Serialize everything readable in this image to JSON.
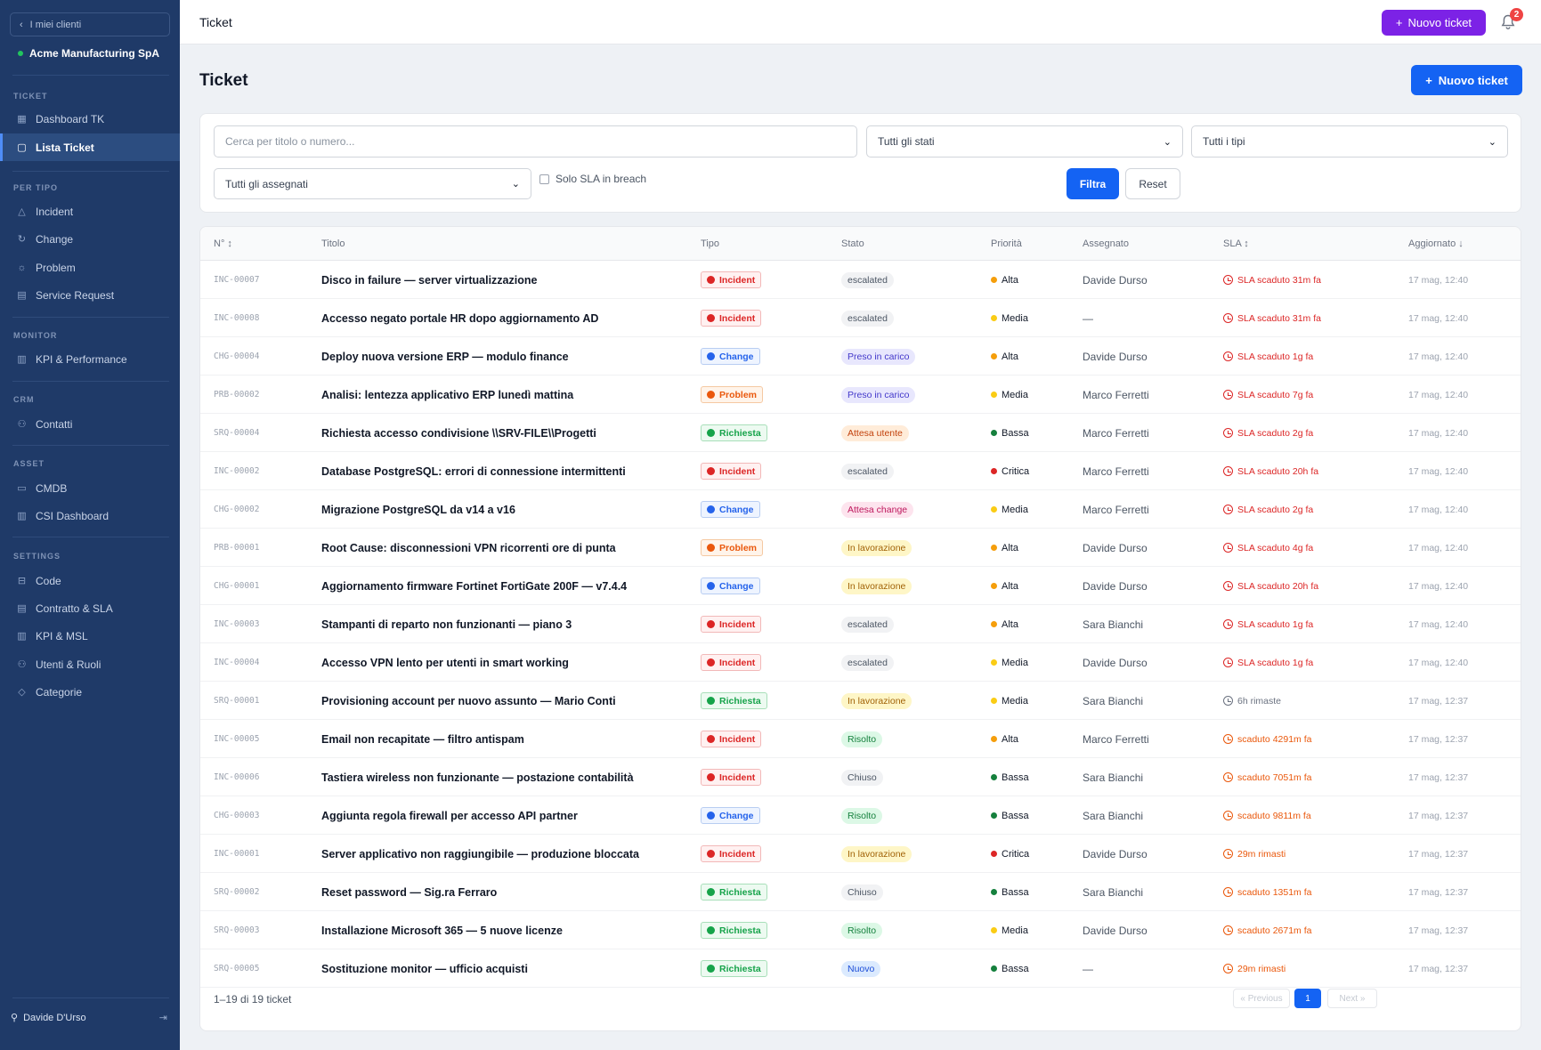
{
  "sidebar": {
    "back_label": "I miei clienti",
    "client_name": "Acme Manufacturing SpA",
    "sections": {
      "ticket": "TICKET",
      "per_tipo": "PER TIPO",
      "monitor": "MONITOR",
      "crm": "CRM",
      "asset": "ASSET",
      "settings": "SETTINGS"
    },
    "items": [
      {
        "label": "Dashboard TK",
        "icon": "grid-icon"
      },
      {
        "label": "Lista Ticket",
        "icon": "clipboard-icon"
      },
      {
        "label": "Incident",
        "icon": "warning-icon"
      },
      {
        "label": "Change",
        "icon": "refresh-icon"
      },
      {
        "label": "Problem",
        "icon": "bulb-icon"
      },
      {
        "label": "Service Request",
        "icon": "clipboard-icon"
      },
      {
        "label": "KPI & Performance",
        "icon": "bar-chart-icon"
      },
      {
        "label": "Contatti",
        "icon": "users-icon"
      },
      {
        "label": "CMDB",
        "icon": "database-icon"
      },
      {
        "label": "CSI Dashboard",
        "icon": "bar-chart-icon"
      },
      {
        "label": "Code",
        "icon": "inbox-icon"
      },
      {
        "label": "Contratto & SLA",
        "icon": "document-icon"
      },
      {
        "label": "KPI & MSL",
        "icon": "bar-chart-icon"
      },
      {
        "label": "Utenti & Ruoli",
        "icon": "users-icon"
      },
      {
        "label": "Categorie",
        "icon": "tag-icon"
      }
    ],
    "user_name": "Davide D'Urso"
  },
  "topbar": {
    "title": "Ticket",
    "new_ticket_label": "Nuovo ticket",
    "notification_count": "2"
  },
  "page": {
    "title": "Ticket",
    "new_ticket_label": "Nuovo ticket"
  },
  "filters": {
    "search_placeholder": "Cerca per titolo o numero...",
    "stato_value": "Tutti gli stati",
    "tipo_value": "Tutti i tipi",
    "assegnato_value": "Tutti gli assegnati",
    "sla_breach_label": "Solo SLA in breach",
    "filter_button": "Filtra",
    "reset_button": "Reset"
  },
  "table": {
    "headers": {
      "num": "N° ↕",
      "titolo": "Titolo",
      "tipo": "Tipo",
      "stato": "Stato",
      "priorita": "Priorità",
      "assegnato": "Assegnato",
      "sla": "SLA ↕",
      "aggiornato": "Aggiornato ↓"
    },
    "rows": [
      {
        "num": "INC-00007",
        "titolo": "Disco in failure — server virtualizzazione",
        "tipo": "Incident",
        "tipo_kind": "incident",
        "stato": "escalated",
        "stato_kind": "escalated",
        "priorita": "Alta",
        "prio_color": "#f59e0b",
        "assegnato": "Davide Durso",
        "sla": "SLA scaduto 31m fa",
        "sla_kind": "red",
        "aggiornato": "17 mag, 12:40"
      },
      {
        "num": "INC-00008",
        "titolo": "Accesso negato portale HR dopo aggiornamento AD",
        "tipo": "Incident",
        "tipo_kind": "incident",
        "stato": "escalated",
        "stato_kind": "escalated",
        "priorita": "Media",
        "prio_color": "#facc15",
        "assegnato": "—",
        "sla": "SLA scaduto 31m fa",
        "sla_kind": "red",
        "aggiornato": "17 mag, 12:40"
      },
      {
        "num": "CHG-00004",
        "titolo": "Deploy nuova versione ERP — modulo finance",
        "tipo": "Change",
        "tipo_kind": "change",
        "stato": "Preso in carico",
        "stato_kind": "carico",
        "priorita": "Alta",
        "prio_color": "#f59e0b",
        "assegnato": "Davide Durso",
        "sla": "SLA scaduto 1g fa",
        "sla_kind": "red",
        "aggiornato": "17 mag, 12:40"
      },
      {
        "num": "PRB-00002",
        "titolo": "Analisi: lentezza applicativo ERP lunedì mattina",
        "tipo": "Problem",
        "tipo_kind": "problem",
        "stato": "Preso in carico",
        "stato_kind": "carico",
        "priorita": "Media",
        "prio_color": "#facc15",
        "assegnato": "Marco Ferretti",
        "sla": "SLA scaduto 7g fa",
        "sla_kind": "red",
        "aggiornato": "17 mag, 12:40"
      },
      {
        "num": "SRQ-00004",
        "titolo": "Richiesta accesso condivisione \\\\SRV-FILE\\\\Progetti",
        "tipo": "Richiesta",
        "tipo_kind": "richiesta",
        "stato": "Attesa utente",
        "stato_kind": "attesa-utente",
        "priorita": "Bassa",
        "prio_color": "#15803d",
        "assegnato": "Marco Ferretti",
        "sla": "SLA scaduto 2g fa",
        "sla_kind": "red",
        "aggiornato": "17 mag, 12:40"
      },
      {
        "num": "INC-00002",
        "titolo": "Database PostgreSQL: errori di connessione intermittenti",
        "tipo": "Incident",
        "tipo_kind": "incident",
        "stato": "escalated",
        "stato_kind": "escalated",
        "priorita": "Critica",
        "prio_color": "#dc2626",
        "assegnato": "Marco Ferretti",
        "sla": "SLA scaduto 20h fa",
        "sla_kind": "red",
        "aggiornato": "17 mag, 12:40"
      },
      {
        "num": "CHG-00002",
        "titolo": "Migrazione PostgreSQL da v14 a v16",
        "tipo": "Change",
        "tipo_kind": "change",
        "stato": "Attesa change",
        "stato_kind": "attesa-change",
        "priorita": "Media",
        "prio_color": "#facc15",
        "assegnato": "Marco Ferretti",
        "sla": "SLA scaduto 2g fa",
        "sla_kind": "red",
        "aggiornato": "17 mag, 12:40"
      },
      {
        "num": "PRB-00001",
        "titolo": "Root Cause: disconnessioni VPN ricorrenti ore di punta",
        "tipo": "Problem",
        "tipo_kind": "problem",
        "stato": "In lavorazione",
        "stato_kind": "lavorazione",
        "priorita": "Alta",
        "prio_color": "#f59e0b",
        "assegnato": "Davide Durso",
        "sla": "SLA scaduto 4g fa",
        "sla_kind": "red",
        "aggiornato": "17 mag, 12:40"
      },
      {
        "num": "CHG-00001",
        "titolo": "Aggiornamento firmware Fortinet FortiGate 200F — v7.4.4",
        "tipo": "Change",
        "tipo_kind": "change",
        "stato": "In lavorazione",
        "stato_kind": "lavorazione",
        "priorita": "Alta",
        "prio_color": "#f59e0b",
        "assegnato": "Davide Durso",
        "sla": "SLA scaduto 20h fa",
        "sla_kind": "red",
        "aggiornato": "17 mag, 12:40"
      },
      {
        "num": "INC-00003",
        "titolo": "Stampanti di reparto non funzionanti — piano 3",
        "tipo": "Incident",
        "tipo_kind": "incident",
        "stato": "escalated",
        "stato_kind": "escalated",
        "priorita": "Alta",
        "prio_color": "#f59e0b",
        "assegnato": "Sara Bianchi",
        "sla": "SLA scaduto 1g fa",
        "sla_kind": "red",
        "aggiornato": "17 mag, 12:40"
      },
      {
        "num": "INC-00004",
        "titolo": "Accesso VPN lento per utenti in smart working",
        "tipo": "Incident",
        "tipo_kind": "incident",
        "stato": "escalated",
        "stato_kind": "escalated",
        "priorita": "Media",
        "prio_color": "#facc15",
        "assegnato": "Davide Durso",
        "sla": "SLA scaduto 1g fa",
        "sla_kind": "red",
        "aggiornato": "17 mag, 12:40"
      },
      {
        "num": "SRQ-00001",
        "titolo": "Provisioning account per nuovo assunto — Mario Conti",
        "tipo": "Richiesta",
        "tipo_kind": "richiesta",
        "stato": "In lavorazione",
        "stato_kind": "lavorazione",
        "priorita": "Media",
        "prio_color": "#facc15",
        "assegnato": "Sara Bianchi",
        "sla": "6h rimaste",
        "sla_kind": "gray",
        "aggiornato": "17 mag, 12:37"
      },
      {
        "num": "INC-00005",
        "titolo": "Email non recapitate — filtro antispam",
        "tipo": "Incident",
        "tipo_kind": "incident",
        "stato": "Risolto",
        "stato_kind": "risolto",
        "priorita": "Alta",
        "prio_color": "#f59e0b",
        "assegnato": "Marco Ferretti",
        "sla": "scaduto 4291m fa",
        "sla_kind": "orange",
        "aggiornato": "17 mag, 12:37"
      },
      {
        "num": "INC-00006",
        "titolo": "Tastiera wireless non funzionante — postazione contabilità",
        "tipo": "Incident",
        "tipo_kind": "incident",
        "stato": "Chiuso",
        "stato_kind": "chiuso",
        "priorita": "Bassa",
        "prio_color": "#15803d",
        "assegnato": "Sara Bianchi",
        "sla": "scaduto 7051m fa",
        "sla_kind": "orange",
        "aggiornato": "17 mag, 12:37"
      },
      {
        "num": "CHG-00003",
        "titolo": "Aggiunta regola firewall per accesso API partner",
        "tipo": "Change",
        "tipo_kind": "change",
        "stato": "Risolto",
        "stato_kind": "risolto",
        "priorita": "Bassa",
        "prio_color": "#15803d",
        "assegnato": "Sara Bianchi",
        "sla": "scaduto 9811m fa",
        "sla_kind": "orange",
        "aggiornato": "17 mag, 12:37"
      },
      {
        "num": "INC-00001",
        "titolo": "Server applicativo non raggiungibile — produzione bloccata",
        "tipo": "Incident",
        "tipo_kind": "incident",
        "stato": "In lavorazione",
        "stato_kind": "lavorazione",
        "priorita": "Critica",
        "prio_color": "#dc2626",
        "assegnato": "Davide Durso",
        "sla": "29m rimasti",
        "sla_kind": "orange",
        "aggiornato": "17 mag, 12:37"
      },
      {
        "num": "SRQ-00002",
        "titolo": "Reset password — Sig.ra Ferraro",
        "tipo": "Richiesta",
        "tipo_kind": "richiesta",
        "stato": "Chiuso",
        "stato_kind": "chiuso",
        "priorita": "Bassa",
        "prio_color": "#15803d",
        "assegnato": "Sara Bianchi",
        "sla": "scaduto 1351m fa",
        "sla_kind": "orange",
        "aggiornato": "17 mag, 12:37"
      },
      {
        "num": "SRQ-00003",
        "titolo": "Installazione Microsoft 365 — 5 nuove licenze",
        "tipo": "Richiesta",
        "tipo_kind": "richiesta",
        "stato": "Risolto",
        "stato_kind": "risolto",
        "priorita": "Media",
        "prio_color": "#facc15",
        "assegnato": "Davide Durso",
        "sla": "scaduto 2671m fa",
        "sla_kind": "orange",
        "aggiornato": "17 mag, 12:37"
      },
      {
        "num": "SRQ-00005",
        "titolo": "Sostituzione monitor — ufficio acquisti",
        "tipo": "Richiesta",
        "tipo_kind": "richiesta",
        "stato": "Nuovo",
        "stato_kind": "nuovo",
        "priorita": "Bassa",
        "prio_color": "#15803d",
        "assegnato": "—",
        "sla": "29m rimasti",
        "sla_kind": "orange",
        "aggiornato": "17 mag, 12:37"
      }
    ],
    "footer_count": "1–19 di 19 ticket",
    "pagination": {
      "prev": "« Previous",
      "current": "1",
      "next": "Next »"
    }
  }
}
